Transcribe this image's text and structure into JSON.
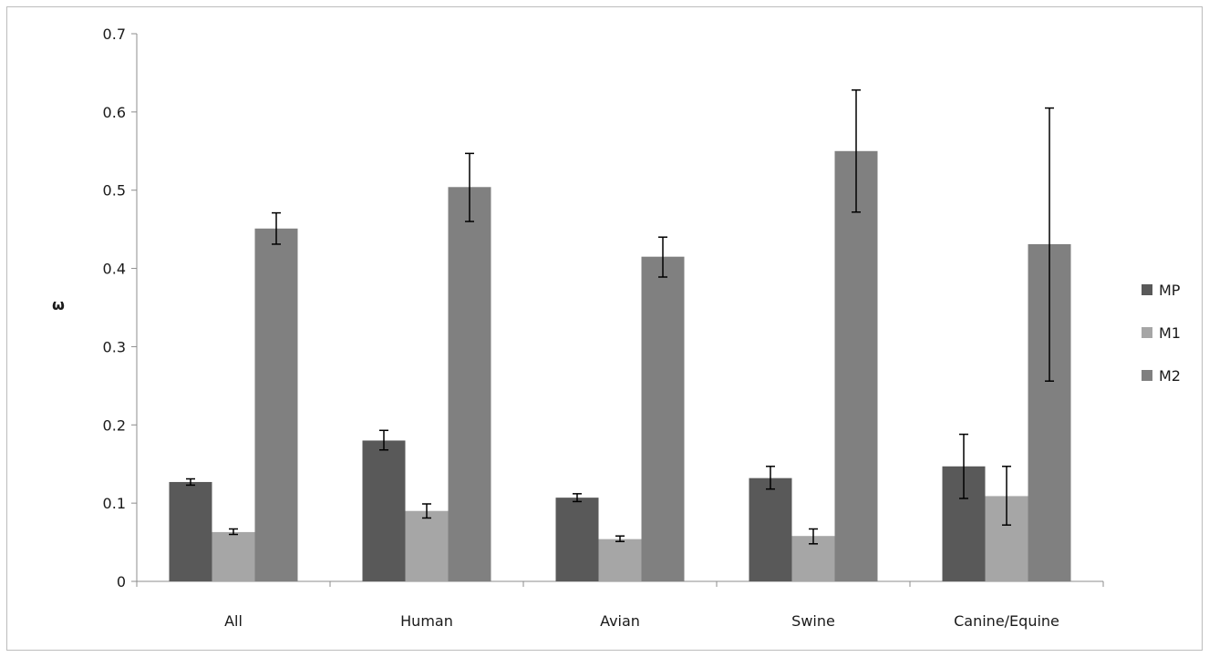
{
  "chart_data": {
    "type": "bar",
    "title": "",
    "xlabel": "",
    "ylabel": "ω",
    "ylim": [
      0,
      0.7
    ],
    "yticks": [
      0,
      0.1,
      0.2,
      0.3,
      0.4,
      0.5,
      0.6,
      0.7
    ],
    "ytick_labels": [
      "0",
      "0.1",
      "0.2",
      "0.3",
      "0.4",
      "0.5",
      "0.6",
      "0.7"
    ],
    "categories": [
      "All",
      "Human",
      "Avian",
      "Swine",
      "Canine/Equine"
    ],
    "series": [
      {
        "name": "MP",
        "color": "#595959",
        "values": [
          0.127,
          0.18,
          0.107,
          0.132,
          0.147
        ],
        "error_low": [
          0.123,
          0.168,
          0.102,
          0.118,
          0.106
        ],
        "error_high": [
          0.131,
          0.193,
          0.112,
          0.147,
          0.188
        ]
      },
      {
        "name": "M1",
        "color": "#a6a6a6",
        "values": [
          0.063,
          0.09,
          0.054,
          0.058,
          0.109
        ],
        "error_low": [
          0.06,
          0.081,
          0.051,
          0.048,
          0.072
        ],
        "error_high": [
          0.067,
          0.099,
          0.058,
          0.067,
          0.147
        ]
      },
      {
        "name": "M2",
        "color": "#808080",
        "values": [
          0.451,
          0.504,
          0.415,
          0.55,
          0.431
        ],
        "error_low": [
          0.431,
          0.46,
          0.389,
          0.472,
          0.256
        ],
        "error_high": [
          0.471,
          0.547,
          0.44,
          0.628,
          0.605
        ]
      }
    ],
    "legend": {
      "placement": "right"
    },
    "grid": false
  }
}
